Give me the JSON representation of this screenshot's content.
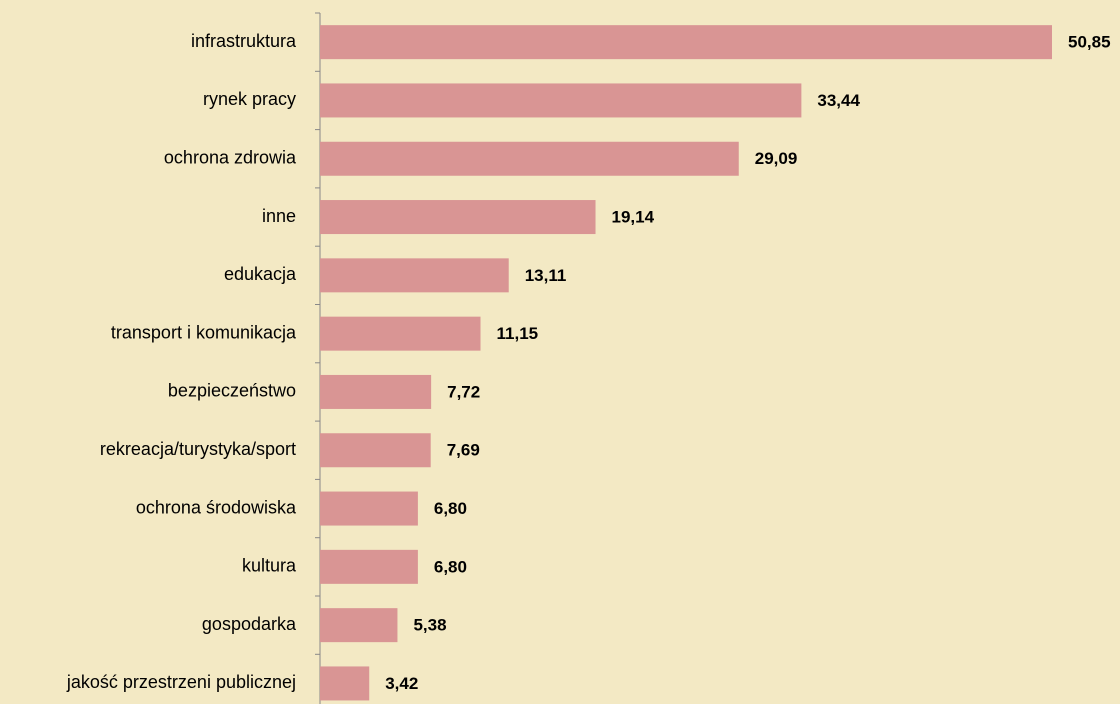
{
  "chart_data": {
    "type": "hbar",
    "categories": [
      "infrastruktura",
      "rynek pracy",
      "ochrona zdrowia",
      "inne",
      "edukacja",
      "transport i komunikacja",
      "bezpieczeństwo",
      "rekreacja/turystyka/sport",
      "ochrona środowiska",
      "kultura",
      "gospodarka",
      "jakość przestrzeni publicznej"
    ],
    "values": [
      50.85,
      33.44,
      29.09,
      19.14,
      13.11,
      11.15,
      7.72,
      7.69,
      6.8,
      6.8,
      5.38,
      3.42
    ],
    "value_labels": [
      "50,85",
      "33,44",
      "29,09",
      "19,14",
      "13,11",
      "11,15",
      "7,72",
      "7,69",
      "6,80",
      "6,80",
      "5,38",
      "3,42"
    ],
    "color": "#d99594"
  }
}
